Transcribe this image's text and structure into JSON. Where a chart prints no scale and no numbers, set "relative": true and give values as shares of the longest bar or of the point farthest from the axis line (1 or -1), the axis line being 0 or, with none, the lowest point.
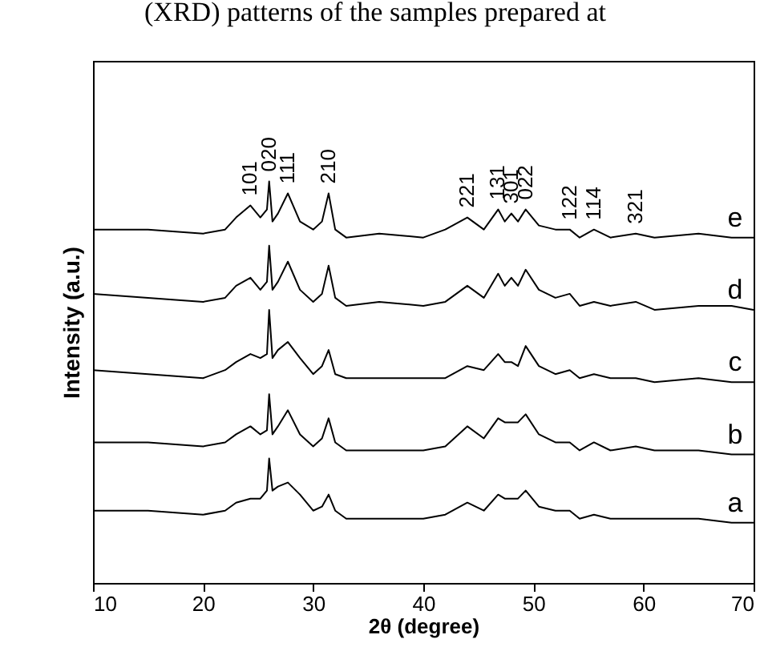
{
  "chart_data": {
    "type": "line",
    "relative": true,
    "xlabel": "2θ (degree)",
    "ylabel": "Intensity (a.u.)",
    "xlim": [
      10,
      70
    ],
    "xticks": [
      10,
      20,
      30,
      40,
      50,
      60,
      70
    ],
    "legend": false,
    "line_style": "solid",
    "x": [
      10,
      15,
      20,
      22,
      23,
      24.3,
      25.2,
      25.8,
      26,
      26.3,
      26.8,
      27.7,
      28.8,
      30,
      30.8,
      31.4,
      32,
      33,
      36,
      40,
      42,
      44,
      45.5,
      46.8,
      47.4,
      48,
      48.6,
      49.3,
      50.5,
      52,
      53.3,
      54.2,
      55.5,
      57,
      59.3,
      61,
      65,
      68,
      70
    ],
    "series": [
      {
        "name": "e",
        "color": "#000000",
        "values": [
          0.88,
          0.88,
          0.87,
          0.88,
          0.91,
          0.94,
          0.91,
          0.93,
          1.0,
          0.9,
          0.92,
          0.97,
          0.9,
          0.88,
          0.9,
          0.97,
          0.88,
          0.86,
          0.87,
          0.86,
          0.88,
          0.91,
          0.88,
          0.93,
          0.9,
          0.92,
          0.9,
          0.93,
          0.89,
          0.88,
          0.88,
          0.86,
          0.88,
          0.86,
          0.87,
          0.86,
          0.87,
          0.86,
          0.86
        ]
      },
      {
        "name": "d",
        "color": "#000000",
        "values": [
          0.72,
          0.71,
          0.7,
          0.71,
          0.74,
          0.76,
          0.73,
          0.75,
          0.84,
          0.73,
          0.75,
          0.8,
          0.73,
          0.7,
          0.72,
          0.79,
          0.71,
          0.69,
          0.7,
          0.69,
          0.7,
          0.74,
          0.71,
          0.77,
          0.74,
          0.76,
          0.74,
          0.78,
          0.73,
          0.71,
          0.72,
          0.69,
          0.7,
          0.69,
          0.7,
          0.68,
          0.69,
          0.69,
          0.68
        ]
      },
      {
        "name": "c",
        "color": "#000000",
        "values": [
          0.53,
          0.52,
          0.51,
          0.53,
          0.55,
          0.57,
          0.56,
          0.57,
          0.68,
          0.56,
          0.58,
          0.6,
          0.56,
          0.52,
          0.54,
          0.58,
          0.52,
          0.51,
          0.51,
          0.51,
          0.51,
          0.54,
          0.53,
          0.57,
          0.55,
          0.55,
          0.54,
          0.59,
          0.54,
          0.52,
          0.53,
          0.51,
          0.52,
          0.51,
          0.51,
          0.5,
          0.51,
          0.5,
          0.5
        ]
      },
      {
        "name": "b",
        "color": "#000000",
        "values": [
          0.35,
          0.35,
          0.34,
          0.35,
          0.37,
          0.39,
          0.37,
          0.38,
          0.47,
          0.37,
          0.39,
          0.43,
          0.37,
          0.34,
          0.36,
          0.41,
          0.35,
          0.33,
          0.33,
          0.33,
          0.34,
          0.39,
          0.36,
          0.41,
          0.4,
          0.4,
          0.4,
          0.42,
          0.37,
          0.35,
          0.35,
          0.33,
          0.35,
          0.33,
          0.34,
          0.33,
          0.33,
          0.32,
          0.32
        ]
      },
      {
        "name": "a",
        "color": "#000000",
        "values": [
          0.18,
          0.18,
          0.17,
          0.18,
          0.2,
          0.21,
          0.21,
          0.23,
          0.31,
          0.23,
          0.24,
          0.25,
          0.22,
          0.18,
          0.19,
          0.22,
          0.18,
          0.16,
          0.16,
          0.16,
          0.17,
          0.2,
          0.18,
          0.22,
          0.21,
          0.21,
          0.21,
          0.23,
          0.19,
          0.18,
          0.18,
          0.16,
          0.17,
          0.16,
          0.16,
          0.16,
          0.16,
          0.15,
          0.15
        ]
      }
    ],
    "annotations": [
      "(XRD) patterns of the samples prepared at",
      {
        "text": "101",
        "x": 24.3,
        "y": 0.94
      },
      {
        "text": "020",
        "x": 26,
        "y": 1.0
      },
      {
        "text": "111",
        "x": 27.7,
        "y": 0.97
      },
      {
        "text": "210",
        "x": 31.4,
        "y": 0.97
      },
      {
        "text": "221",
        "x": 44,
        "y": 0.91
      },
      {
        "text": "131",
        "x": 46.8,
        "y": 0.93
      },
      {
        "text": "301",
        "x": 48,
        "y": 0.92
      },
      {
        "text": "022",
        "x": 49.3,
        "y": 0.93
      },
      {
        "text": "122",
        "x": 53.3,
        "y": 0.88
      },
      {
        "text": "114",
        "x": 55.5,
        "y": 0.88
      },
      {
        "text": "321",
        "x": 59.3,
        "y": 0.87
      }
    ]
  }
}
